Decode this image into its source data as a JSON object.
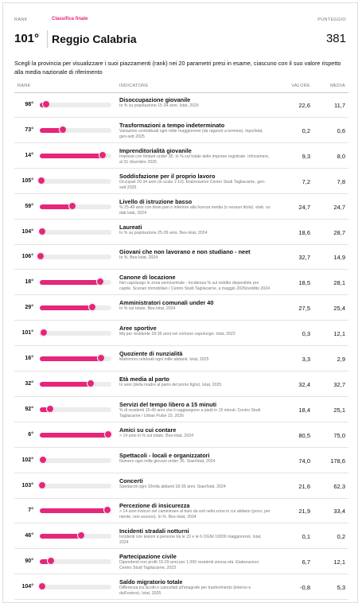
{
  "header": {
    "rank_label": "RANK",
    "subtitle": "Classifica finale",
    "score_label": "PUNTEGGIO",
    "rank": "101°",
    "province": "Reggio Calabria",
    "score": "381",
    "intro": "Scegli la provincia per visualizzare i suoi piazzamenti (rank) nei 20 parametri presi in esame, ciascuno con il suo valore rispetto alla media nazionale di riferimento"
  },
  "table": {
    "columns": [
      "RANK",
      "INDICATORE",
      "VALORE",
      "MEDIA"
    ],
    "rows": [
      {
        "rank": {
          "value": 98,
          "label": "98°"
        },
        "title": "Disoccupazione giovanile",
        "description": "In % su popolazione 15-34 anni. Istat, 2025",
        "valore": "22,6",
        "media": "11,7"
      },
      {
        "rank": {
          "value": 73,
          "label": "73°"
        },
        "title": "Trasformazioni a tempo indeterminato",
        "description": "Variazioni contrattuali ogni mille maggiorenni (da rapporti a termine). Inps/Istat, gen-sett 2025",
        "valore": "0,2",
        "media": "0,6"
      },
      {
        "rank": {
          "value": 14,
          "label": "14°"
        },
        "title": "Imprenditorialità giovanile",
        "description": "Imprese con titolare under 35. In % sul totale delle imprese registrate. Infocamere, al 31 dicembre 2025",
        "valore": "9,3",
        "media": "8,0"
      },
      {
        "rank": {
          "value": 105,
          "label": "105°"
        },
        "title": "Soddisfazione per il proprio lavoro",
        "description": "Occupati 20-34 anni (in scala 1-10). Elaborazioni Centro Studi Tagliacarne, gen-sett 2025",
        "valore": "7,2",
        "media": "7,8"
      },
      {
        "rank": {
          "value": 59,
          "label": "59°"
        },
        "title": "Livello di istruzione basso",
        "description": "% 25-49 anni con titolo pari o inferiore alla licenza media (o nessun titolo). elab. su dati Istat, 2024",
        "valore": "24,7",
        "media": "24,7"
      },
      {
        "rank": {
          "value": 104,
          "label": "104°"
        },
        "title": "Laureati",
        "description": "In % su popolazione 25-39 anni. Bes-Istat, 2024",
        "valore": "18,6",
        "media": "28,7"
      },
      {
        "rank": {
          "value": 106,
          "label": "106°"
        },
        "title": "Giovani che non lavorano e non studiano - neet",
        "description": "In %. Bes-Istat, 2024",
        "valore": "32,7",
        "media": "14,9"
      },
      {
        "rank": {
          "value": 18,
          "label": "18°"
        },
        "title": "Canone di locazione",
        "description": "Nel capoluogo in zona semicentrale - Incidenza % sul reddito disponibile pro capite. Scenari immobiliari / Centro Studi Tagliacarne, a maggio 2026/reddito 2024",
        "valore": "18,5",
        "media": "28,1"
      },
      {
        "rank": {
          "value": 29,
          "label": "29°"
        },
        "title": "Amministratori comunali under 40",
        "description": "In % sul totale. Bes-Istat, 2024",
        "valore": "27,5",
        "media": "25,4"
      },
      {
        "rank": {
          "value": 101,
          "label": "101°"
        },
        "title": "Aree sportive",
        "description": "Mq per residente 18-35 anni nel comune capoluogo. Istat, 2023",
        "valore": "0,3",
        "media": "12,1"
      },
      {
        "rank": {
          "value": 16,
          "label": "16°"
        },
        "title": "Quoziente di nunzialità",
        "description": "Matrimoni celebrati ogni mille abitanti. Istat, 2025",
        "valore": "3,3",
        "media": "2,9"
      },
      {
        "rank": {
          "value": 32,
          "label": "32°"
        },
        "title": "Età media al parto",
        "description": "In anni (della madre al parto del primo figlio). Istat, 2025",
        "valore": "32,4",
        "media": "32,7"
      },
      {
        "rank": {
          "value": 92,
          "label": "92°"
        },
        "title": "Servizi del tempo libero a 15 minuti",
        "description": "% di residenti 15-49 anni che li raggiungono a piedi in 15 minuti. Centro Studi Tagliacarne / Urban Pulse 15, 2026",
        "valore": "18,4",
        "media": "25,1"
      },
      {
        "rank": {
          "value": 6,
          "label": "6°"
        },
        "title": "Amici su cui contare",
        "description": "> 14 anni in % sul totale. Bes-Istat, 2024",
        "valore": "80,5",
        "media": "75,0"
      },
      {
        "rank": {
          "value": 102,
          "label": "102°"
        },
        "title": "Spettacoli - locali e organizzatori",
        "description": "Numero ogni mille giovani under 35. Siae/Istat, 2024",
        "valore": "74,0",
        "media": "178,6"
      },
      {
        "rank": {
          "value": 103,
          "label": "103°"
        },
        "title": "Concerti",
        "description": "Spettacoli ogni 10mila abitanti 18-35 anni. Siae/Istat, 2024",
        "valore": "21,6",
        "media": "62,3"
      },
      {
        "rank": {
          "value": 7,
          "label": "7°"
        },
        "title": "Percezione di insicurezza",
        "description": "> 14 anni insicuri nel camminare al buio da soli nella zona in cui abitano (poco, per niente, non escono). In %. Bes-Istat, 2024",
        "valore": "21,9",
        "media": "33,4"
      },
      {
        "rank": {
          "value": 46,
          "label": "46°"
        },
        "title": "Incidenti stradali notturni",
        "description": "Incidenti con lesioni a persone tra le 22 e le 6 OGNI 10000 maggiorenni. Istat, 2024",
        "valore": "0,1",
        "media": "0,2"
      },
      {
        "rank": {
          "value": 90,
          "label": "90°"
        },
        "title": "Partecipazione civile",
        "description": "Dipendenti non profit 15-29 anni per 1.000 residenti stessa età. Elaborazioni Centro Studi Tagliacarne, 2023",
        "valore": "6,7",
        "media": "12,1"
      },
      {
        "rank": {
          "value": 104,
          "label": "104°"
        },
        "title": "Saldo migratorio totale",
        "description": "Differenza tra iscritti e cancellati all'anagrafe per trasferimento (interno e dall'estero). Istat, 2025",
        "valore": "-0,8",
        "media": "5,3"
      }
    ]
  }
}
